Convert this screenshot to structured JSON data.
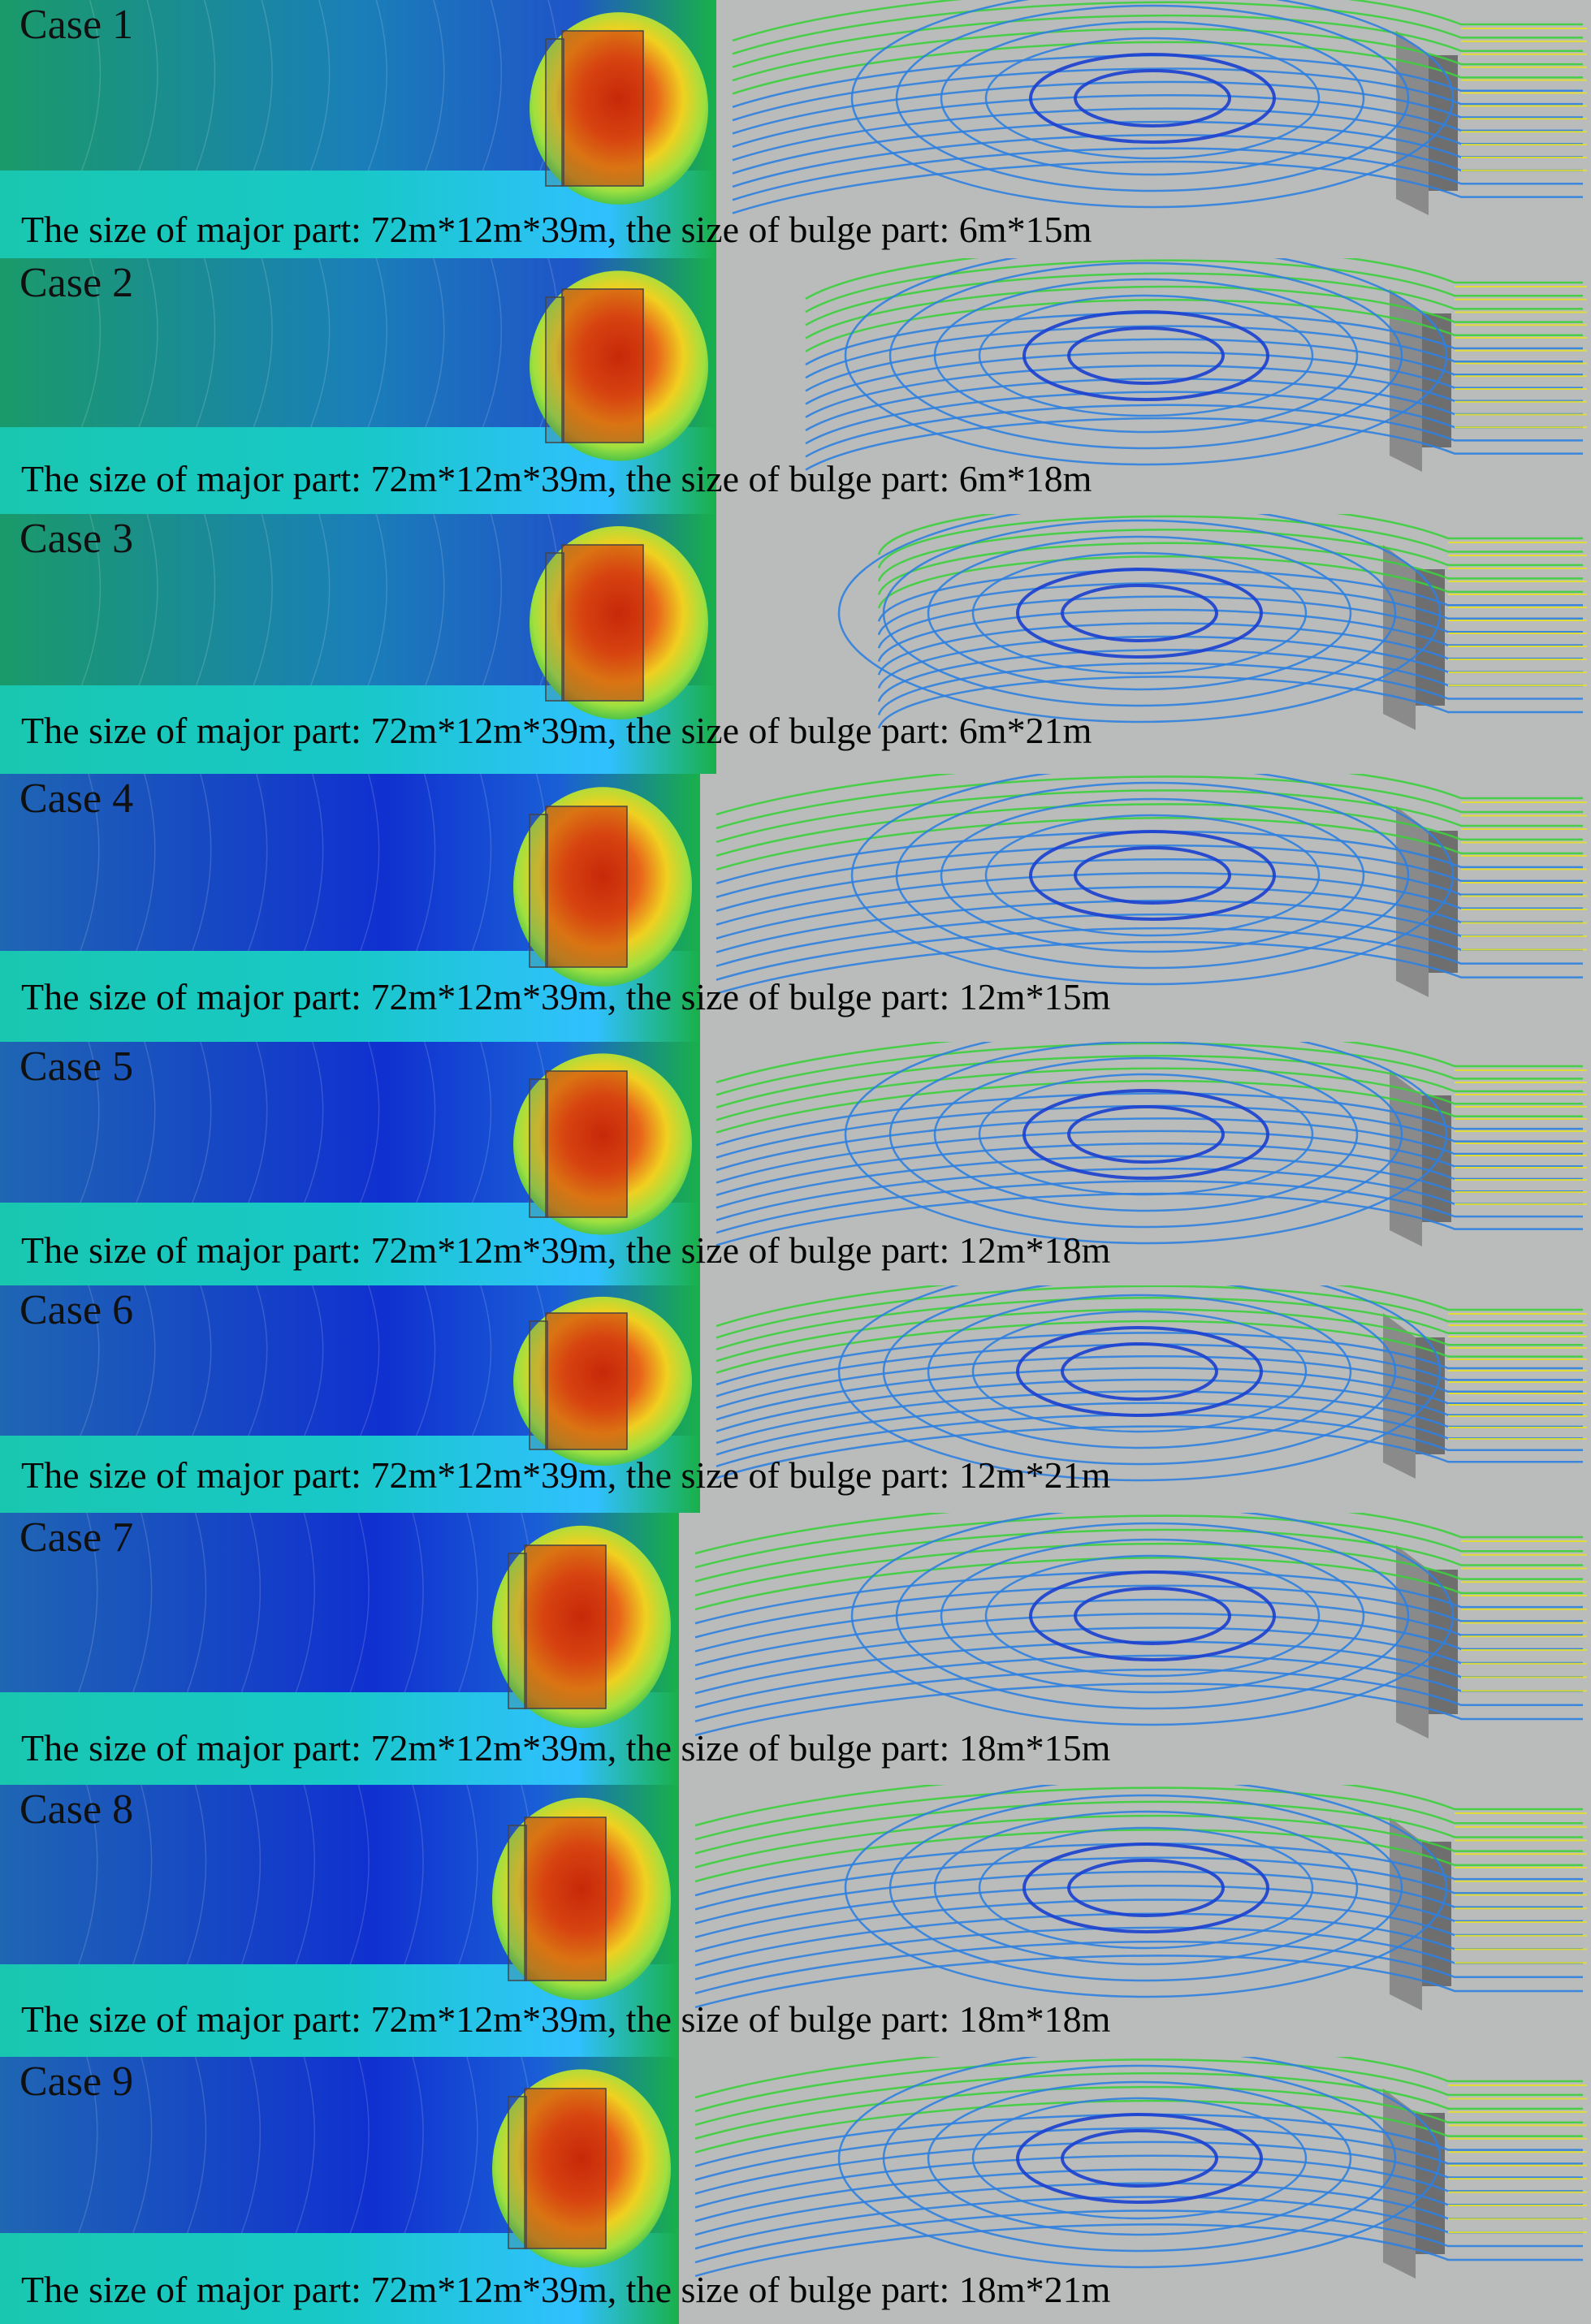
{
  "colors": {
    "contour_low": "#1a3fc4",
    "contour_mid": "#18c8c8",
    "contour_high": "#19b04a",
    "hotspot": "#d83a10",
    "streamline_green": "#3ccf3c",
    "streamline_blue": "#2f7fe0",
    "streamline_yellow": "#e6e02a",
    "background_gray": "#b9bcbb",
    "building_gray": "#7a7a7a"
  },
  "cases": [
    {
      "title": "Case 1",
      "caption": "The size of major part: 72m*12m*39m,  the size of bulge part: 6m*15m"
    },
    {
      "title": "Case 2",
      "caption": "The size of major part: 72m*12m*39m,  the size of bulge part: 6m*18m"
    },
    {
      "title": "Case 3",
      "caption": "The size of major part: 72m*12m*39m,  the size of bulge part: 6m*21m"
    },
    {
      "title": "Case 4",
      "caption": "The size of major part: 72m*12m*39m,  the size of bulge part: 12m*15m"
    },
    {
      "title": "Case 5",
      "caption": "The size of major part: 72m*12m*39m,  the size of bulge part: 12m*18m"
    },
    {
      "title": "Case 6",
      "caption": "The size of major part: 72m*12m*39m,  the size of bulge part: 12m*21m"
    },
    {
      "title": "Case 7",
      "caption": "The size of major part: 72m*12m*39m,  the size of bulge part: 18m*15m"
    },
    {
      "title": "Case 8",
      "caption": "The size of major part: 72m*12m*39m,  the size of bulge part: 18m*18m"
    },
    {
      "title": "Case 9",
      "caption": "The size of major part: 72m*12m*39m,  the size of bulge part: 18m*21m"
    }
  ]
}
